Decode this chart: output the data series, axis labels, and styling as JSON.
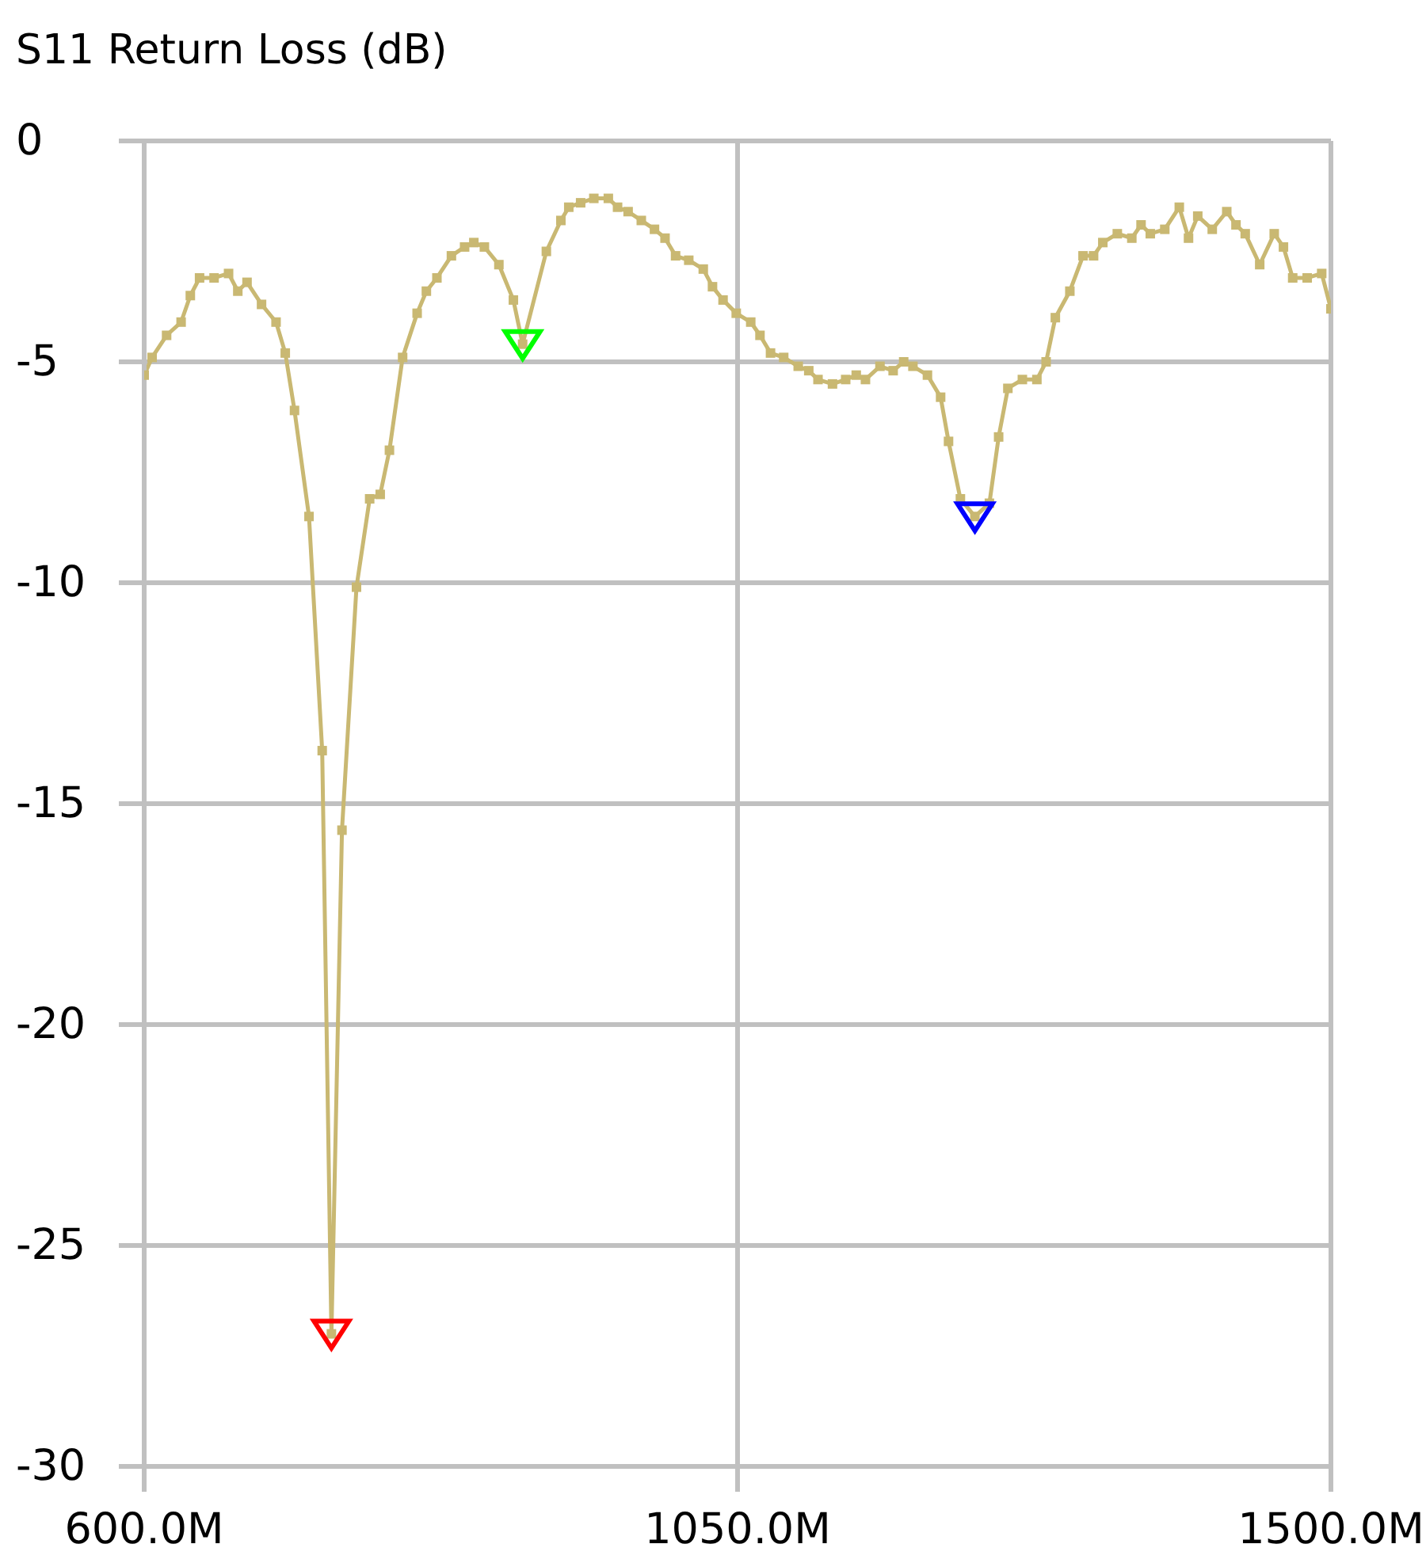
{
  "chart_data": {
    "type": "line",
    "title": "S11 Return Loss (dB)",
    "grid": true,
    "xlim": [
      600,
      1500
    ],
    "xticks": [
      {
        "value": 600,
        "label": "600.0M"
      },
      {
        "value": 1050,
        "label": "1050.0M"
      },
      {
        "value": 1500,
        "label": "1500.0M"
      }
    ],
    "ylim": [
      -30,
      0
    ],
    "yticks": [
      -30,
      -25,
      -20,
      -15,
      -10,
      -5,
      0
    ],
    "series": [
      {
        "color": "#c9b872",
        "marker": "square",
        "line_style": "solid",
        "x": [
          600,
          606,
          617,
          628,
          635,
          642,
          653,
          664,
          671,
          678,
          689,
          700,
          707,
          714,
          725,
          735,
          742,
          750,
          761,
          771,
          779,
          786,
          796,
          807,
          814,
          822,
          833,
          843,
          850,
          858,
          869,
          880,
          887,
          905,
          916,
          922,
          931,
          941,
          952,
          959,
          967,
          977,
          987,
          995,
          1003,
          1013,
          1024,
          1031,
          1039,
          1049,
          1060,
          1067,
          1075,
          1085,
          1096,
          1104,
          1111,
          1122,
          1132,
          1140,
          1147,
          1158,
          1168,
          1176,
          1183,
          1194,
          1204,
          1210,
          1219,
          1230,
          1241,
          1248,
          1255,
          1266,
          1277,
          1284,
          1291,
          1302,
          1312,
          1320,
          1327,
          1338,
          1349,
          1356,
          1363,
          1374,
          1385,
          1392,
          1399,
          1410,
          1421,
          1428,
          1435,
          1446,
          1457,
          1464,
          1471,
          1482,
          1493,
          1500
        ],
        "values": [
          -5.3,
          -4.9,
          -4.4,
          -4.1,
          -3.5,
          -3.1,
          -3.1,
          -3.0,
          -3.4,
          -3.2,
          -3.7,
          -4.1,
          -4.8,
          -6.1,
          -8.5,
          -13.8,
          -27.0,
          -15.6,
          -10.1,
          -8.1,
          -8.0,
          -7.0,
          -4.9,
          -3.9,
          -3.4,
          -3.1,
          -2.6,
          -2.4,
          -2.3,
          -2.4,
          -2.8,
          -3.6,
          -4.6,
          -2.5,
          -1.8,
          -1.5,
          -1.4,
          -1.3,
          -1.3,
          -1.5,
          -1.6,
          -1.8,
          -2.0,
          -2.2,
          -2.6,
          -2.7,
          -2.9,
          -3.3,
          -3.6,
          -3.9,
          -4.1,
          -4.4,
          -4.8,
          -4.9,
          -5.1,
          -5.2,
          -5.4,
          -5.5,
          -5.4,
          -5.3,
          -5.4,
          -5.1,
          -5.2,
          -5.0,
          -5.1,
          -5.3,
          -5.8,
          -6.8,
          -8.1,
          -8.5,
          -8.2,
          -6.7,
          -5.6,
          -5.4,
          -5.4,
          -5.0,
          -4.0,
          -3.4,
          -2.6,
          -2.6,
          -2.3,
          -2.1,
          -2.2,
          -1.9,
          -2.1,
          -2.0,
          -1.5,
          -2.2,
          -1.7,
          -2.0,
          -1.6,
          -1.9,
          -2.1,
          -2.8,
          -2.1,
          -2.4,
          -3.1,
          -3.1,
          -3.0,
          -3.8
        ]
      },
      {
        "type": "scatter",
        "marker": "triangle",
        "colors": [
          "#ff0000",
          "#00ff00",
          "#0000ff"
        ],
        "x": [
          742,
          887,
          1230
        ],
        "values": [
          -27.0,
          -4.6,
          -8.5
        ]
      }
    ]
  }
}
